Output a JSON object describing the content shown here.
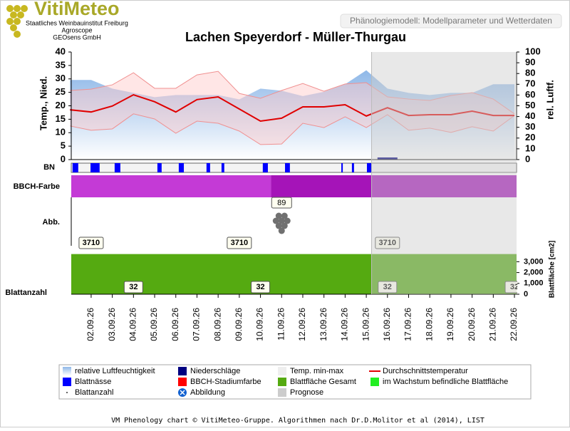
{
  "page": {
    "logo": "VitiMeteo",
    "logo_lines": [
      "Staatliches Weinbauinstitut Freiburg",
      "Agroscope",
      "GEOsens GmbH"
    ],
    "tab": "Phänologiemodell: Modellparameter und Wetterdaten",
    "footer": "VM Phenology chart © VitiMeteo-Gruppe. Algorithmen nach Dr.D.Molitor et al (2014), LIST"
  },
  "chart_data": {
    "type": "phenology",
    "title": "Lachen Speyerdorf - Müller-Thurgau",
    "ylabel": "Temp., Nied.",
    "y2label": "rel. Luftf.",
    "y3label": "Blattfläche [cm2]",
    "row_labels": {
      "bn": "BN",
      "bbch": "BBCH-Farbe",
      "abb": "Abb.",
      "blattanzahl": "Blattanzahl"
    },
    "categories": [
      null,
      "02.09.26",
      "03.09.26",
      "04.09.26",
      "05.09.26",
      "06.09.26",
      "07.09.26",
      "08.09.26",
      "09.09.26",
      "10.09.26",
      "11.09.26",
      "12.09.26",
      "13.09.26",
      "14.09.26",
      "15.09.26",
      "16.09.26",
      "17.09.26",
      "18.09.26",
      "19.09.26",
      "20.09.26",
      "21.09.26",
      "22.09.26"
    ],
    "xlim": [
      0.06,
      21.1
    ],
    "ylim": [
      0,
      40
    ],
    "yticks": [
      0,
      5,
      10,
      15,
      20,
      25,
      30,
      35,
      40
    ],
    "y2lim": [
      0,
      100
    ],
    "y2ticks": [
      0,
      10,
      20,
      30,
      40,
      50,
      60,
      70,
      80,
      90,
      100
    ],
    "y3lim": [
      0,
      3750
    ],
    "y3ticks": [
      0,
      {
        "value": 1000,
        "label": "1,000"
      },
      {
        "value": 2000,
        "label": "2,000"
      },
      {
        "value": 3000,
        "label": "3,000"
      }
    ],
    "series": [
      {
        "name": "relative Luftfeuchtigkeit",
        "color": "#8fb8e8",
        "axis": "y2",
        "values": [
          74,
          74,
          66,
          62,
          58,
          60,
          60,
          60,
          56,
          66,
          64,
          59,
          63,
          70,
          83,
          66,
          62,
          60,
          62,
          62,
          70,
          70
        ]
      },
      {
        "name": "Niederschläge",
        "color": "#000080",
        "values": [
          0,
          0,
          0,
          0,
          0,
          0,
          0,
          0,
          0,
          0,
          0,
          0,
          0,
          0,
          0,
          0.8,
          0,
          0,
          0,
          0,
          0,
          0
        ]
      },
      {
        "name": "Temp. min-max",
        "color": "#eeeeee",
        "values": [
          25.7,
          26.2,
          27.8,
          32.3,
          26.5,
          26.5,
          31.5,
          32.8,
          24.6,
          22.8,
          25.7,
          28.3,
          25.4,
          28.1,
          28.6,
          23.3,
          22.5,
          22.0,
          23.8,
          24.9,
          22.5,
          17.0
        ],
        "min": [
          12.5,
          10.9,
          11.4,
          17.0,
          15.1,
          9.8,
          14.3,
          13.5,
          10.6,
          5.6,
          5.8,
          13.5,
          11.9,
          15.9,
          11.9,
          16.7,
          10.9,
          11.7,
          10.1,
          12.2,
          10.6,
          16.4
        ]
      },
      {
        "name": "Durchschnittstemperatur",
        "color": "#e00000",
        "values": [
          18.5,
          17.7,
          19.9,
          24.1,
          21.5,
          17.7,
          22.3,
          23.3,
          18.8,
          14.3,
          15.4,
          19.6,
          19.6,
          20.4,
          16.2,
          19.3,
          16.4,
          16.7,
          16.7,
          18.0,
          16.4,
          16.4
        ]
      },
      {
        "name": "Blattnässe",
        "color": "#0000ff",
        "intervals": [
          [
            0.12,
            0.39
          ],
          [
            0.97,
            1.4
          ],
          [
            2.11,
            2.38
          ],
          [
            4.13,
            4.33
          ],
          [
            5.14,
            5.38
          ],
          [
            6.45,
            6.62
          ],
          [
            7.16,
            7.29
          ],
          [
            9.11,
            9.35
          ],
          [
            10.16,
            10.39
          ],
          [
            12.82,
            12.89
          ],
          [
            13.32,
            13.42
          ],
          [
            14.03,
            14.26
          ]
        ]
      },
      {
        "name": "BBCH-Stadiumfarbe",
        "color": "#ff0000",
        "stages": [
          {
            "start": 0.06,
            "color": "#c43ad6"
          },
          {
            "start": 9.5,
            "color": "#a514b8"
          }
        ]
      },
      {
        "name": "Blattfläche Gesamt",
        "color": "#55aa11",
        "values": [
          3710,
          3710,
          3710,
          3710,
          3710,
          3710,
          3710,
          3710,
          3710,
          3710,
          3710,
          3710,
          3710,
          3710,
          3710,
          3710,
          3710,
          3710,
          3710,
          3710,
          3710,
          3710
        ]
      },
      {
        "name": "im Wachstum befindliche Blattfläche",
        "color": "#22ee22"
      },
      {
        "name": "Blattanzahl",
        "color": "#333333",
        "values": [
          32,
          32,
          32,
          32,
          32,
          32,
          32,
          32,
          32,
          32,
          32,
          32,
          32,
          32,
          32,
          32,
          32,
          32,
          32,
          32,
          32,
          32
        ]
      },
      {
        "name": "Abbildung",
        "color": "#1060d0",
        "x": 10,
        "value": 89
      },
      {
        "name": "Prognose",
        "color": "#cccccc",
        "start": 14.25
      }
    ]
  }
}
